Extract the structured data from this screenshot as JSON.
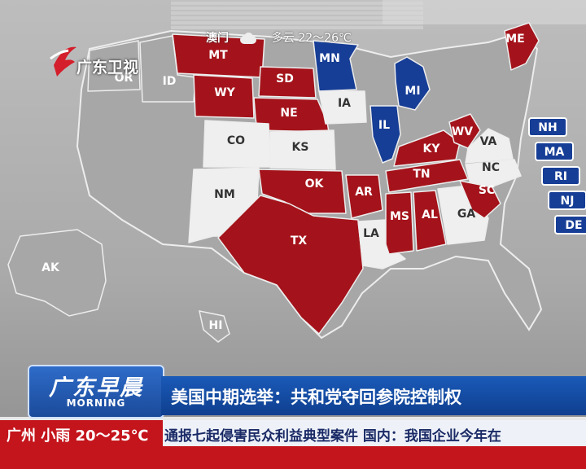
{
  "colors": {
    "republican": "#a4131b",
    "democrat": "#173e96",
    "undecided": "#efefef",
    "not_contested": "#a7a7a7",
    "channel_blue": "#1a5ab8",
    "channel_red": "#c4151c"
  },
  "weather_top": {
    "city": "澳门",
    "icon": "cloud-icon",
    "forecast": "多云 22～26℃"
  },
  "logo": {
    "brand": "广东卫视",
    "icon": "gdtv-logo-icon"
  },
  "map": {
    "states": [
      {
        "abbr": "MT",
        "status": "republican"
      },
      {
        "abbr": "OR",
        "status": "not_contested"
      },
      {
        "abbr": "ID",
        "status": "not_contested"
      },
      {
        "abbr": "WY",
        "status": "republican"
      },
      {
        "abbr": "SD",
        "status": "republican"
      },
      {
        "abbr": "NE",
        "status": "republican"
      },
      {
        "abbr": "MN",
        "status": "democrat"
      },
      {
        "abbr": "MI",
        "status": "democrat"
      },
      {
        "abbr": "IA",
        "status": "undecided"
      },
      {
        "abbr": "IL",
        "status": "democrat"
      },
      {
        "abbr": "CO",
        "status": "undecided"
      },
      {
        "abbr": "KS",
        "status": "undecided"
      },
      {
        "abbr": "NM",
        "status": "undecided"
      },
      {
        "abbr": "OK",
        "status": "republican"
      },
      {
        "abbr": "AR",
        "status": "republican"
      },
      {
        "abbr": "TX",
        "status": "republican"
      },
      {
        "abbr": "LA",
        "status": "undecided"
      },
      {
        "abbr": "MS",
        "status": "republican"
      },
      {
        "abbr": "AL",
        "status": "republican"
      },
      {
        "abbr": "GA",
        "status": "undecided"
      },
      {
        "abbr": "TN",
        "status": "republican"
      },
      {
        "abbr": "KY",
        "status": "republican"
      },
      {
        "abbr": "WV",
        "status": "republican"
      },
      {
        "abbr": "VA",
        "status": "undecided"
      },
      {
        "abbr": "NC",
        "status": "undecided"
      },
      {
        "abbr": "SC",
        "status": "republican"
      },
      {
        "abbr": "ME",
        "status": "republican"
      },
      {
        "abbr": "AK",
        "status": "not_contested"
      },
      {
        "abbr": "HI",
        "status": "not_contested"
      }
    ],
    "northeast_tabs": [
      "NH",
      "MA",
      "RI",
      "NJ",
      "DE"
    ]
  },
  "lower_third": {
    "show_title": "广东早晨",
    "show_subtitle": "MORNING",
    "headline": "美国中期选举：共和党夺回参院控制权",
    "city_weather": "广州 小雨 20～25℃",
    "ticker": "通报七起侵害民众利益典型案件    国内：我国企业今年在"
  }
}
